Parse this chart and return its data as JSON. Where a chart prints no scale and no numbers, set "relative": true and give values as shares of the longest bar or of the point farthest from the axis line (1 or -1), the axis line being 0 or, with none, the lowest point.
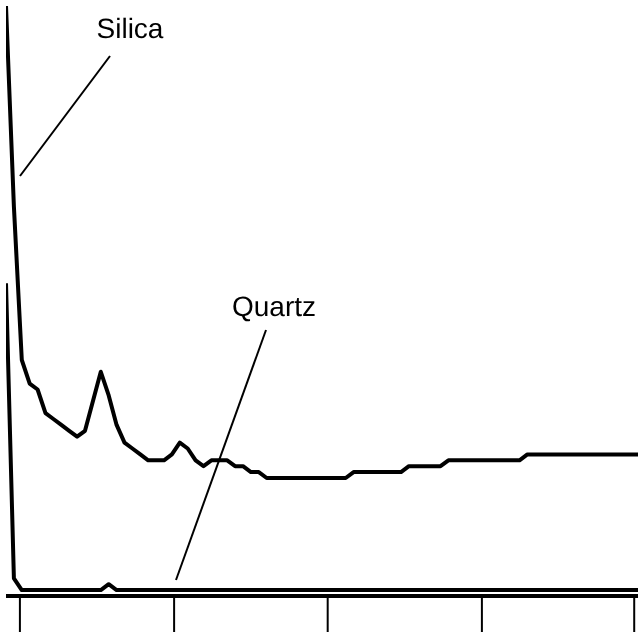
{
  "chart_data": {
    "type": "line",
    "relative": true,
    "categories": [
      null,
      null,
      null,
      null,
      null,
      null,
      null,
      null,
      null,
      null,
      null,
      null,
      null,
      null,
      null,
      null,
      null,
      null,
      null,
      null,
      null,
      null,
      null,
      null,
      null,
      null,
      null,
      null,
      null,
      null,
      null,
      null,
      null,
      null,
      null,
      null,
      null,
      null,
      null,
      null,
      null,
      null,
      null,
      null,
      null,
      null,
      null,
      null,
      null,
      null,
      null,
      null,
      null,
      null,
      null,
      null,
      null,
      null,
      null,
      null,
      null,
      null,
      null,
      null,
      null,
      null,
      null,
      null,
      null,
      null,
      null,
      null,
      null,
      null,
      null,
      null,
      null,
      null,
      null,
      null,
      null
    ],
    "series": [
      {
        "color": "#000000",
        "values": [
          1.0,
          0.66,
          0.4,
          0.36,
          0.35,
          0.31,
          0.3,
          0.29,
          0.28,
          0.27,
          0.28,
          0.33,
          0.38,
          0.34,
          0.29,
          0.26,
          0.25,
          0.24,
          0.23,
          0.23,
          0.23,
          0.24,
          0.26,
          0.25,
          0.23,
          0.22,
          0.23,
          0.23,
          0.23,
          0.22,
          0.22,
          0.21,
          0.21,
          0.2,
          0.2,
          0.2,
          0.2,
          0.2,
          0.2,
          0.2,
          0.2,
          0.2,
          0.2,
          0.2,
          0.21,
          0.21,
          0.21,
          0.21,
          0.21,
          0.21,
          0.21,
          0.22,
          0.22,
          0.22,
          0.22,
          0.22,
          0.23,
          0.23,
          0.23,
          0.23,
          0.23,
          0.23,
          0.23,
          0.23,
          0.23,
          0.23,
          0.24,
          0.24,
          0.24,
          0.24,
          0.24,
          0.24,
          0.24,
          0.24,
          0.24,
          0.24,
          0.24,
          0.24,
          0.24,
          0.24,
          0.24
        ]
      },
      {
        "color": "#000000",
        "values": [
          0.53,
          0.03,
          0.01,
          0.01,
          0.01,
          0.01,
          0.01,
          0.01,
          0.01,
          0.01,
          0.01,
          0.01,
          0.01,
          0.02,
          0.01,
          0.01,
          0.01,
          0.01,
          0.01,
          0.01,
          0.01,
          0.01,
          0.01,
          0.01,
          0.01,
          0.01,
          0.01,
          0.01,
          0.01,
          0.01,
          0.01,
          0.01,
          0.01,
          0.01,
          0.01,
          0.01,
          0.01,
          0.01,
          0.01,
          0.01,
          0.01,
          0.01,
          0.01,
          0.01,
          0.01,
          0.01,
          0.01,
          0.01,
          0.01,
          0.01,
          0.01,
          0.01,
          0.01,
          0.01,
          0.01,
          0.01,
          0.01,
          0.01,
          0.01,
          0.01,
          0.01,
          0.01,
          0.01,
          0.01,
          0.01,
          0.01,
          0.01,
          0.01,
          0.01,
          0.01,
          0.01,
          0.01,
          0.01,
          0.01,
          0.01,
          0.01,
          0.01,
          0.01,
          0.01,
          0.01,
          0.01
        ]
      }
    ],
    "annotations": [
      "Silica",
      "Quartz"
    ],
    "grid": false,
    "legend": false,
    "marker": "none",
    "line_style": "solid"
  }
}
